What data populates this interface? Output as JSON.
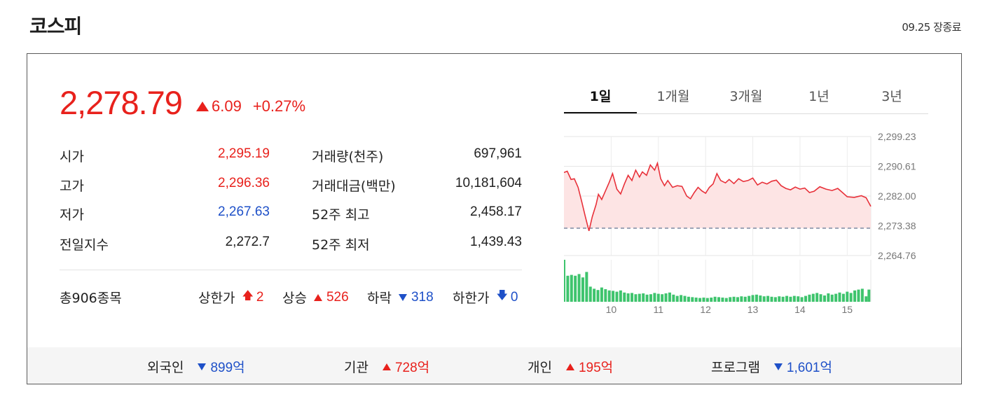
{
  "header": {
    "title": "코스피",
    "status": "09.25 장종료"
  },
  "price": {
    "value": "2,278.79",
    "change": "6.09",
    "change_pct": "+0.27%",
    "direction": "up"
  },
  "stats": {
    "left": [
      {
        "label": "시가",
        "value": "2,295.19",
        "tone": "up"
      },
      {
        "label": "고가",
        "value": "2,296.36",
        "tone": "up"
      },
      {
        "label": "저가",
        "value": "2,267.63",
        "tone": "down"
      },
      {
        "label": "전일지수",
        "value": "2,272.7",
        "tone": "neutral"
      }
    ],
    "right": [
      {
        "label": "거래량(천주)",
        "value": "697,961"
      },
      {
        "label": "거래대금(백만)",
        "value": "10,181,604"
      },
      {
        "label": "52주 최고",
        "value": "2,458.17"
      },
      {
        "label": "52주 최저",
        "value": "1,439.43"
      }
    ]
  },
  "breadth": {
    "total": "총906종목",
    "upper_limit": {
      "label": "상한가",
      "value": "2",
      "icon": "arrow-up-icon"
    },
    "advance": {
      "label": "상승",
      "value": "526",
      "icon": "triangle-up-icon"
    },
    "decline": {
      "label": "하락",
      "value": "318",
      "icon": "triangle-down-icon"
    },
    "lower_limit": {
      "label": "하한가",
      "value": "0",
      "icon": "arrow-down-icon"
    }
  },
  "tabs": [
    {
      "label": "1일",
      "active": true
    },
    {
      "label": "1개월",
      "active": false
    },
    {
      "label": "3개월",
      "active": false
    },
    {
      "label": "1년",
      "active": false
    },
    {
      "label": "3년",
      "active": false
    }
  ],
  "chart_data": {
    "type": "area",
    "x_ticks": [
      "10",
      "11",
      "12",
      "13",
      "14",
      "15"
    ],
    "y_ticks": [
      "2,299.23",
      "2,290.61",
      "2,282.00",
      "2,273.38",
      "2,264.76"
    ],
    "ylim": [
      2264.76,
      2299.23
    ],
    "baseline": 2272.7,
    "x_range": [
      9.0,
      15.5
    ],
    "price_series": [
      [
        9.0,
        2288.8
      ],
      [
        9.07,
        2289.2
      ],
      [
        9.15,
        2286.8
      ],
      [
        9.22,
        2287.0
      ],
      [
        9.3,
        2284.5
      ],
      [
        9.38,
        2280.2
      ],
      [
        9.45,
        2276.2
      ],
      [
        9.53,
        2271.9
      ],
      [
        9.6,
        2276.0
      ],
      [
        9.68,
        2279.5
      ],
      [
        9.73,
        2282.5
      ],
      [
        9.8,
        2281.0
      ],
      [
        9.88,
        2283.5
      ],
      [
        9.96,
        2286.0
      ],
      [
        10.03,
        2288.5
      ],
      [
        10.12,
        2284.0
      ],
      [
        10.2,
        2282.6
      ],
      [
        10.28,
        2285.5
      ],
      [
        10.36,
        2288.0
      ],
      [
        10.44,
        2286.5
      ],
      [
        10.52,
        2289.5
      ],
      [
        10.6,
        2287.5
      ],
      [
        10.66,
        2289.0
      ],
      [
        10.75,
        2288.0
      ],
      [
        10.83,
        2291.0
      ],
      [
        10.92,
        2289.5
      ],
      [
        10.98,
        2291.5
      ],
      [
        11.05,
        2287.0
      ],
      [
        11.13,
        2285.0
      ],
      [
        11.2,
        2286.5
      ],
      [
        11.3,
        2284.5
      ],
      [
        11.4,
        2285.0
      ],
      [
        11.5,
        2284.8
      ],
      [
        11.6,
        2282.0
      ],
      [
        11.68,
        2281.2
      ],
      [
        11.76,
        2283.0
      ],
      [
        11.84,
        2284.5
      ],
      [
        11.92,
        2283.5
      ],
      [
        12.0,
        2282.8
      ],
      [
        12.08,
        2284.5
      ],
      [
        12.16,
        2285.5
      ],
      [
        12.24,
        2288.5
      ],
      [
        12.32,
        2286.5
      ],
      [
        12.42,
        2285.8
      ],
      [
        12.5,
        2286.8
      ],
      [
        12.6,
        2285.6
      ],
      [
        12.7,
        2287.0
      ],
      [
        12.8,
        2286.2
      ],
      [
        12.9,
        2286.5
      ],
      [
        13.0,
        2287.2
      ],
      [
        13.1,
        2285.2
      ],
      [
        13.2,
        2286.0
      ],
      [
        13.3,
        2285.5
      ],
      [
        13.4,
        2286.3
      ],
      [
        13.5,
        2286.6
      ],
      [
        13.6,
        2285.0
      ],
      [
        13.7,
        2284.2
      ],
      [
        13.8,
        2283.8
      ],
      [
        13.9,
        2284.6
      ],
      [
        14.0,
        2284.0
      ],
      [
        14.1,
        2284.3
      ],
      [
        14.2,
        2283.0
      ],
      [
        14.3,
        2283.4
      ],
      [
        14.42,
        2284.7
      ],
      [
        14.55,
        2284.0
      ],
      [
        14.68,
        2283.6
      ],
      [
        14.8,
        2284.2
      ],
      [
        14.9,
        2283.0
      ],
      [
        15.0,
        2281.8
      ],
      [
        15.15,
        2281.6
      ],
      [
        15.3,
        2282.1
      ],
      [
        15.4,
        2281.5
      ],
      [
        15.5,
        2279.0
      ]
    ],
    "volume_series": [
      [
        9.0,
        100
      ],
      [
        9.08,
        62
      ],
      [
        9.16,
        64
      ],
      [
        9.24,
        62
      ],
      [
        9.32,
        66
      ],
      [
        9.4,
        58
      ],
      [
        9.48,
        71
      ],
      [
        9.56,
        36
      ],
      [
        9.64,
        31
      ],
      [
        9.72,
        28
      ],
      [
        9.8,
        34
      ],
      [
        9.88,
        30
      ],
      [
        9.96,
        27
      ],
      [
        10.04,
        26
      ],
      [
        10.12,
        24
      ],
      [
        10.2,
        27
      ],
      [
        10.28,
        22
      ],
      [
        10.36,
        20
      ],
      [
        10.44,
        21
      ],
      [
        10.52,
        18
      ],
      [
        10.6,
        19
      ],
      [
        10.68,
        20
      ],
      [
        10.76,
        17
      ],
      [
        10.84,
        18
      ],
      [
        10.92,
        21
      ],
      [
        11.0,
        19
      ],
      [
        11.08,
        18
      ],
      [
        11.16,
        20
      ],
      [
        11.24,
        22
      ],
      [
        11.32,
        17
      ],
      [
        11.4,
        14
      ],
      [
        11.48,
        16
      ],
      [
        11.56,
        14
      ],
      [
        11.64,
        12
      ],
      [
        11.72,
        11
      ],
      [
        11.8,
        10
      ],
      [
        11.88,
        9
      ],
      [
        11.96,
        10
      ],
      [
        12.04,
        9
      ],
      [
        12.12,
        10
      ],
      [
        12.2,
        12
      ],
      [
        12.28,
        11
      ],
      [
        12.36,
        10
      ],
      [
        12.44,
        9
      ],
      [
        12.52,
        11
      ],
      [
        12.6,
        12
      ],
      [
        12.68,
        11
      ],
      [
        12.76,
        13
      ],
      [
        12.84,
        12
      ],
      [
        12.92,
        14
      ],
      [
        13.0,
        16
      ],
      [
        13.08,
        17
      ],
      [
        13.16,
        15
      ],
      [
        13.24,
        13
      ],
      [
        13.32,
        14
      ],
      [
        13.4,
        12
      ],
      [
        13.48,
        11
      ],
      [
        13.56,
        13
      ],
      [
        13.64,
        12
      ],
      [
        13.72,
        14
      ],
      [
        13.8,
        12
      ],
      [
        13.88,
        14
      ],
      [
        13.96,
        13
      ],
      [
        14.04,
        11
      ],
      [
        14.12,
        14
      ],
      [
        14.2,
        17
      ],
      [
        14.28,
        19
      ],
      [
        14.36,
        21
      ],
      [
        14.44,
        18
      ],
      [
        14.52,
        15
      ],
      [
        14.6,
        20
      ],
      [
        14.68,
        17
      ],
      [
        14.76,
        19
      ],
      [
        14.84,
        22
      ],
      [
        14.92,
        19
      ],
      [
        15.0,
        24
      ],
      [
        15.08,
        21
      ],
      [
        15.16,
        27
      ],
      [
        15.24,
        29
      ],
      [
        15.32,
        31
      ],
      [
        15.4,
        13
      ],
      [
        15.46,
        29
      ]
    ]
  },
  "investors": [
    {
      "label": "외국인",
      "value": "899억",
      "direction": "down"
    },
    {
      "label": "기관",
      "value": "728억",
      "direction": "up"
    },
    {
      "label": "개인",
      "value": "195억",
      "direction": "up"
    },
    {
      "label": "프로그램",
      "value": "1,601억",
      "direction": "down"
    }
  ],
  "colors": {
    "up": "#e8211c",
    "down": "#1e50c8",
    "price_line": "#e8313a",
    "area_fill": "#fde4e4",
    "volume": "#3ec46d",
    "baseline": "#9aa0b4"
  }
}
